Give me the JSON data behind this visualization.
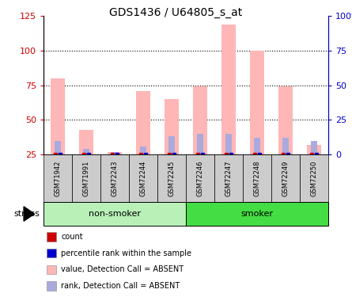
{
  "title": "GDS1436 / U64805_s_at",
  "samples": [
    "GSM71942",
    "GSM71991",
    "GSM72243",
    "GSM72244",
    "GSM72245",
    "GSM72246",
    "GSM72247",
    "GSM72248",
    "GSM72249",
    "GSM72250"
  ],
  "groups": [
    {
      "label": "non-smoker",
      "indices": [
        0,
        1,
        2,
        3,
        4
      ],
      "color": "#b8f0b8"
    },
    {
      "label": "smoker",
      "indices": [
        5,
        6,
        7,
        8,
        9
      ],
      "color": "#44dd44"
    }
  ],
  "pink_bars": [
    80,
    43,
    27,
    71,
    65,
    74,
    119,
    100,
    74,
    32
  ],
  "blue_bars": [
    35,
    29,
    27,
    31,
    38,
    40,
    40,
    37,
    37,
    35
  ],
  "ylim_left": [
    25,
    125
  ],
  "yticks_left": [
    25,
    50,
    75,
    100,
    125
  ],
  "ytick_labels_left": [
    "25",
    "50",
    "75",
    "100",
    "125"
  ],
  "yticks_right": [
    0,
    25,
    50,
    75,
    100
  ],
  "ytick_labels_right": [
    "0",
    "25",
    "50",
    "75",
    "100%"
  ],
  "hlines": [
    50,
    75,
    100
  ],
  "pink_color": "#ffb6b6",
  "blue_color": "#aaaadd",
  "red_dot_color": "#cc0000",
  "blue_dot_color": "#0000cc",
  "left_axis_color": "#cc0000",
  "right_axis_color": "#0000cc",
  "stress_label": "stress",
  "baseline": 25,
  "legend_items": [
    {
      "color": "#cc0000",
      "label": "count"
    },
    {
      "color": "#0000cc",
      "label": "percentile rank within the sample"
    },
    {
      "color": "#ffb6b6",
      "label": "value, Detection Call = ABSENT"
    },
    {
      "color": "#aaaadd",
      "label": "rank, Detection Call = ABSENT"
    }
  ]
}
